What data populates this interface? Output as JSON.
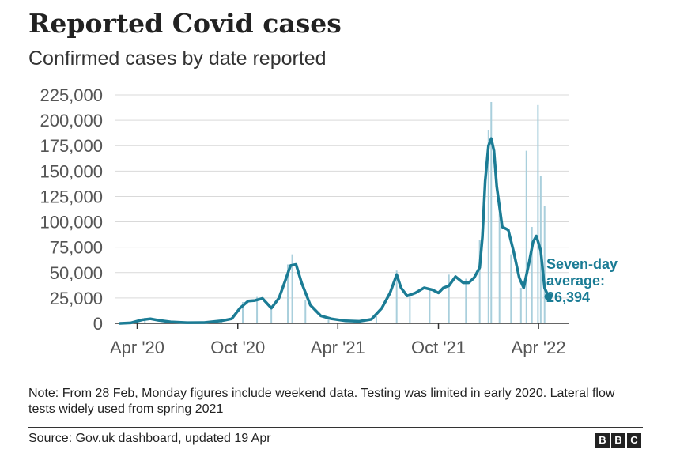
{
  "title": "Reported Covid cases",
  "subtitle": "Confirmed cases by date reported",
  "note": "Note: From 28 Feb, Monday figures include weekend data. Testing was limited in early 2020. Lateral flow tests widely used from spring 2021",
  "source": "Source: Gov.uk dashboard, updated 19 Apr",
  "logo": [
    "B",
    "B",
    "C"
  ],
  "colors": {
    "line": "#1b7c95",
    "bars": "#a9cfdc",
    "grid": "#d9d9d9",
    "axis": "#333333",
    "annotation": "#1b7c95"
  },
  "chart_data": {
    "type": "line",
    "ylim": [
      0,
      225000
    ],
    "y_ticks": [
      "225,000",
      "200,000",
      "175,000",
      "150,000",
      "125,000",
      "100,000",
      "75,000",
      "50,000",
      "25,000",
      "0"
    ],
    "x_ticks": [
      "Apr '20",
      "Oct '20",
      "Apr '21",
      "Oct '21",
      "Apr '22"
    ],
    "x_tick_dates": [
      "2020-04-01",
      "2020-10-01",
      "2021-04-01",
      "2021-10-01",
      "2022-04-01"
    ],
    "series": [
      {
        "kind": "bar",
        "description_label": "daily",
        "x": [
          "2020-03-01",
          "2020-04-15",
          "2020-06-01",
          "2020-07-15",
          "2020-09-01",
          "2020-10-10",
          "2020-11-05",
          "2020-12-01",
          "2020-12-31",
          "2021-01-08",
          "2021-02-01",
          "2021-03-15",
          "2021-05-01",
          "2021-06-10",
          "2021-07-17",
          "2021-08-10",
          "2021-09-15",
          "2021-10-20",
          "2021-11-20",
          "2021-12-15",
          "2021-12-31",
          "2022-01-05",
          "2022-01-20",
          "2022-02-10",
          "2022-02-28",
          "2022-03-10",
          "2022-03-20",
          "2022-03-31",
          "2022-04-05",
          "2022-04-12"
        ],
        "y": [
          500,
          5500,
          1500,
          600,
          2500,
          21000,
          26000,
          15000,
          58000,
          68000,
          23000,
          6000,
          2500,
          9000,
          52000,
          30000,
          33000,
          48000,
          44000,
          82000,
          190000,
          218000,
          108000,
          68000,
          35000,
          170000,
          95000,
          215000,
          145000,
          116000
        ]
      },
      {
        "kind": "line",
        "x": [
          "2020-03-01",
          "2020-03-20",
          "2020-04-10",
          "2020-04-25",
          "2020-05-10",
          "2020-06-01",
          "2020-07-01",
          "2020-08-01",
          "2020-09-01",
          "2020-09-20",
          "2020-10-05",
          "2020-10-20",
          "2020-11-01",
          "2020-11-15",
          "2020-12-01",
          "2020-12-15",
          "2020-12-25",
          "2021-01-05",
          "2021-01-15",
          "2021-01-25",
          "2021-02-10",
          "2021-03-01",
          "2021-03-20",
          "2021-04-15",
          "2021-05-10",
          "2021-06-01",
          "2021-06-20",
          "2021-07-05",
          "2021-07-17",
          "2021-07-25",
          "2021-08-05",
          "2021-08-20",
          "2021-09-05",
          "2021-09-20",
          "2021-10-01",
          "2021-10-10",
          "2021-10-20",
          "2021-11-01",
          "2021-11-15",
          "2021-11-25",
          "2021-12-05",
          "2021-12-15",
          "2021-12-20",
          "2021-12-25",
          "2021-12-31",
          "2022-01-05",
          "2022-01-10",
          "2022-01-15",
          "2022-01-25",
          "2022-02-05",
          "2022-02-15",
          "2022-02-25",
          "2022-03-05",
          "2022-03-15",
          "2022-03-22",
          "2022-03-28",
          "2022-04-05",
          "2022-04-12",
          "2022-04-19"
        ],
        "y": [
          0,
          500,
          3500,
          4500,
          3000,
          1500,
          700,
          800,
          2500,
          4500,
          15000,
          22000,
          22500,
          24500,
          15000,
          25000,
          40000,
          57000,
          58000,
          40000,
          18000,
          7500,
          4500,
          2500,
          2000,
          4000,
          15000,
          30000,
          48000,
          35000,
          27000,
          30000,
          35000,
          33000,
          30000,
          35000,
          37000,
          46000,
          40000,
          40000,
          45000,
          55000,
          85000,
          140000,
          175000,
          182000,
          170000,
          135000,
          95000,
          92000,
          70000,
          45000,
          35000,
          60000,
          80000,
          86000,
          72000,
          35000,
          26394
        ]
      }
    ],
    "annotation": [
      "Seven-day",
      "average:",
      "26,394"
    ]
  }
}
